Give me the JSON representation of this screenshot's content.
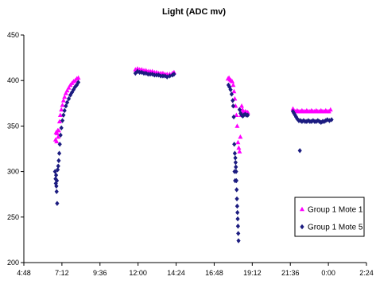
{
  "chart_data": {
    "type": "scatter",
    "title": "Light (ADC mv)",
    "xlabel": "",
    "ylabel": "",
    "x_unit": "hh:mm",
    "xlim": [
      "4:48",
      "2:24"
    ],
    "ylim": [
      200,
      450
    ],
    "x_ticks": [
      "4:48",
      "7:12",
      "9:36",
      "12:00",
      "14:24",
      "16:48",
      "19:12",
      "21:36",
      "0:00",
      "2:24"
    ],
    "y_ticks": [
      200,
      250,
      300,
      350,
      400,
      450
    ],
    "grid": false,
    "legend_position": "right",
    "series": [
      {
        "name": "Group 1 Mote 1",
        "color": "#ff00ff",
        "marker": "triangle",
        "points": [
          [
            "6:48",
            335
          ],
          [
            "6:50",
            343
          ],
          [
            "6:52",
            333
          ],
          [
            "6:54",
            342
          ],
          [
            "6:56",
            345
          ],
          [
            "6:58",
            338
          ],
          [
            "7:00",
            345
          ],
          [
            "7:03",
            355
          ],
          [
            "7:06",
            362
          ],
          [
            "7:10",
            368
          ],
          [
            "7:14",
            373
          ],
          [
            "7:18",
            378
          ],
          [
            "7:22",
            382
          ],
          [
            "7:27",
            386
          ],
          [
            "7:32",
            389
          ],
          [
            "7:38",
            392
          ],
          [
            "7:44",
            395
          ],
          [
            "7:50",
            397
          ],
          [
            "7:56",
            399
          ],
          [
            "8:02",
            400
          ],
          [
            "8:08",
            402
          ],
          [
            "8:14",
            403
          ],
          [
            "11:50",
            412
          ],
          [
            "11:58",
            413
          ],
          [
            "12:06",
            412
          ],
          [
            "12:14",
            412
          ],
          [
            "12:22",
            411
          ],
          [
            "12:30",
            411
          ],
          [
            "12:38",
            410
          ],
          [
            "12:46",
            410
          ],
          [
            "12:54",
            410
          ],
          [
            "13:02",
            409
          ],
          [
            "13:10",
            409
          ],
          [
            "13:18",
            408
          ],
          [
            "13:26",
            408
          ],
          [
            "13:34",
            408
          ],
          [
            "13:42",
            407
          ],
          [
            "13:50",
            407
          ],
          [
            "14:00",
            407
          ],
          [
            "14:10",
            408
          ],
          [
            "14:16",
            409
          ],
          [
            "17:40",
            402
          ],
          [
            "17:44",
            403
          ],
          [
            "17:48",
            401
          ],
          [
            "17:52",
            400
          ],
          [
            "17:56",
            399
          ],
          [
            "18:00",
            395
          ],
          [
            "18:03",
            388
          ],
          [
            "18:06",
            380
          ],
          [
            "18:09",
            372
          ],
          [
            "18:12",
            362
          ],
          [
            "18:15",
            350
          ],
          [
            "18:18",
            332
          ],
          [
            "18:21",
            326
          ],
          [
            "18:24",
            322
          ],
          [
            "18:27",
            338
          ],
          [
            "18:30",
            362
          ],
          [
            "18:32",
            372
          ],
          [
            "18:35",
            368
          ],
          [
            "18:38",
            366
          ],
          [
            "18:42",
            365
          ],
          [
            "18:46",
            366
          ],
          [
            "18:50",
            365
          ],
          [
            "18:55",
            365
          ],
          [
            "21:46",
            369
          ],
          [
            "21:50",
            367
          ],
          [
            "21:56",
            366
          ],
          [
            "22:02",
            367
          ],
          [
            "22:08",
            366
          ],
          [
            "22:14",
            366
          ],
          [
            "22:20",
            367
          ],
          [
            "22:26",
            366
          ],
          [
            "22:32",
            366
          ],
          [
            "22:38",
            367
          ],
          [
            "22:44",
            366
          ],
          [
            "22:50",
            366
          ],
          [
            "22:56",
            367
          ],
          [
            "23:02",
            366
          ],
          [
            "23:08",
            366
          ],
          [
            "23:14",
            367
          ],
          [
            "23:20",
            366
          ],
          [
            "23:26",
            366
          ],
          [
            "23:32",
            367
          ],
          [
            "23:38",
            366
          ],
          [
            "23:44",
            366
          ],
          [
            "23:50",
            367
          ],
          [
            "23:56",
            366
          ],
          [
            "0:02",
            366
          ],
          [
            "0:08",
            368
          ]
        ]
      },
      {
        "name": "Group 1 Mote 5",
        "color": "#1c1c80",
        "marker": "diamond",
        "points": [
          [
            "6:46",
            300
          ],
          [
            "6:48",
            292
          ],
          [
            "6:49",
            287
          ],
          [
            "6:50",
            296
          ],
          [
            "6:51",
            284
          ],
          [
            "6:52",
            278
          ],
          [
            "6:53",
            290
          ],
          [
            "6:54",
            265
          ],
          [
            "6:56",
            302
          ],
          [
            "6:58",
            306
          ],
          [
            "7:00",
            312
          ],
          [
            "7:02",
            320
          ],
          [
            "7:04",
            330
          ],
          [
            "7:07",
            340
          ],
          [
            "7:10",
            348
          ],
          [
            "7:14",
            356
          ],
          [
            "7:18",
            362
          ],
          [
            "7:22",
            367
          ],
          [
            "7:27",
            372
          ],
          [
            "7:32",
            376
          ],
          [
            "7:38",
            380
          ],
          [
            "7:44",
            384
          ],
          [
            "7:50",
            387
          ],
          [
            "7:56",
            390
          ],
          [
            "8:02",
            393
          ],
          [
            "8:08",
            395
          ],
          [
            "8:14",
            398
          ],
          [
            "11:50",
            408
          ],
          [
            "11:58",
            410
          ],
          [
            "12:06",
            409
          ],
          [
            "12:14",
            409
          ],
          [
            "12:22",
            408
          ],
          [
            "12:30",
            408
          ],
          [
            "12:38",
            407
          ],
          [
            "12:46",
            407
          ],
          [
            "12:54",
            407
          ],
          [
            "13:02",
            406
          ],
          [
            "13:10",
            406
          ],
          [
            "13:18",
            406
          ],
          [
            "13:26",
            405
          ],
          [
            "13:34",
            405
          ],
          [
            "13:42",
            405
          ],
          [
            "13:50",
            404
          ],
          [
            "14:00",
            405
          ],
          [
            "14:10",
            406
          ],
          [
            "14:16",
            407
          ],
          [
            "17:42",
            395
          ],
          [
            "17:46",
            393
          ],
          [
            "17:50",
            390
          ],
          [
            "17:54",
            385
          ],
          [
            "17:58",
            378
          ],
          [
            "18:00",
            372
          ],
          [
            "18:02",
            360
          ],
          [
            "18:04",
            330
          ],
          [
            "18:05",
            300
          ],
          [
            "18:06",
            320
          ],
          [
            "18:07",
            290
          ],
          [
            "18:08",
            315
          ],
          [
            "18:09",
            310
          ],
          [
            "18:10",
            305
          ],
          [
            "18:11",
            300
          ],
          [
            "18:12",
            290
          ],
          [
            "18:13",
            280
          ],
          [
            "18:14",
            270
          ],
          [
            "18:15",
            262
          ],
          [
            "18:16",
            255
          ],
          [
            "18:17",
            248
          ],
          [
            "18:18",
            240
          ],
          [
            "18:19",
            232
          ],
          [
            "18:20",
            224
          ],
          [
            "18:24",
            368
          ],
          [
            "18:28",
            364
          ],
          [
            "18:32",
            362
          ],
          [
            "18:36",
            361
          ],
          [
            "18:40",
            362
          ],
          [
            "18:45",
            363
          ],
          [
            "18:50",
            362
          ],
          [
            "18:55",
            362
          ],
          [
            "21:46",
            366
          ],
          [
            "21:50",
            364
          ],
          [
            "21:54",
            362
          ],
          [
            "21:58",
            360
          ],
          [
            "22:02",
            358
          ],
          [
            "22:08",
            356
          ],
          [
            "22:14",
            356
          ],
          [
            "22:20",
            355
          ],
          [
            "22:26",
            356
          ],
          [
            "22:32",
            355
          ],
          [
            "22:38",
            355
          ],
          [
            "22:44",
            356
          ],
          [
            "22:50",
            355
          ],
          [
            "22:56",
            355
          ],
          [
            "23:02",
            356
          ],
          [
            "23:08",
            355
          ],
          [
            "23:14",
            355
          ],
          [
            "23:20",
            356
          ],
          [
            "23:26",
            355
          ],
          [
            "23:32",
            354
          ],
          [
            "23:38",
            355
          ],
          [
            "23:44",
            355
          ],
          [
            "23:50",
            356
          ],
          [
            "23:56",
            357
          ],
          [
            "0:04",
            356
          ],
          [
            "0:12",
            357
          ],
          [
            "22:12",
            323
          ]
        ]
      }
    ]
  }
}
